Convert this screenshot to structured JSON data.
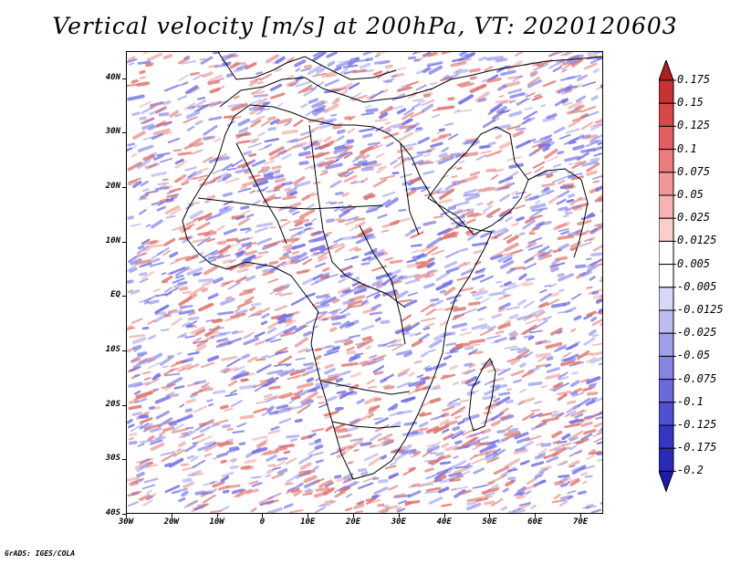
{
  "title": "Vertical velocity [m/s] at 200hPa, VT: 2020120603",
  "map": {
    "lat_range": [
      -40,
      45
    ],
    "lon_range": [
      -30,
      75
    ],
    "lat_labels": [
      "40N",
      "30N",
      "20N",
      "10N",
      "EQ",
      "10S",
      "20S",
      "30S",
      "40S"
    ],
    "lat_values": [
      40,
      30,
      20,
      10,
      0,
      -10,
      -20,
      -30,
      -40
    ],
    "lon_labels": [
      "30W",
      "20W",
      "10W",
      "0",
      "10E",
      "20E",
      "30E",
      "40E",
      "50E",
      "60E",
      "70E"
    ],
    "lon_values": [
      -30,
      -20,
      -10,
      0,
      10,
      20,
      30,
      40,
      50,
      60,
      70
    ],
    "field_colors": {
      "positive": "#e0766f",
      "negative": "#6f6fe6",
      "neutral": "#ffffff"
    },
    "coastline_color": "#000000"
  },
  "colorbar": {
    "labels": [
      "0.175",
      "0.15",
      "0.125",
      "0.1",
      "0.075",
      "0.05",
      "0.025",
      "0.0125",
      "0.005",
      "-0.005",
      "-0.0125",
      "-0.025",
      "-0.05",
      "-0.075",
      "-0.1",
      "-0.125",
      "-0.175",
      "-0.2"
    ],
    "colors": [
      "#b01e1e",
      "#c73232",
      "#d84848",
      "#e35f5f",
      "#ec7b7b",
      "#f29696",
      "#f7b3b3",
      "#fbcece",
      "#ffffff",
      "#ffffff",
      "#d7d7f6",
      "#bcbcf0",
      "#a0a0ea",
      "#8484e2",
      "#6a6adb",
      "#5050d2",
      "#3636c6",
      "#2a2ab8",
      "#1c1ca8"
    ]
  },
  "credit": "GrADS: IGES/COLA"
}
